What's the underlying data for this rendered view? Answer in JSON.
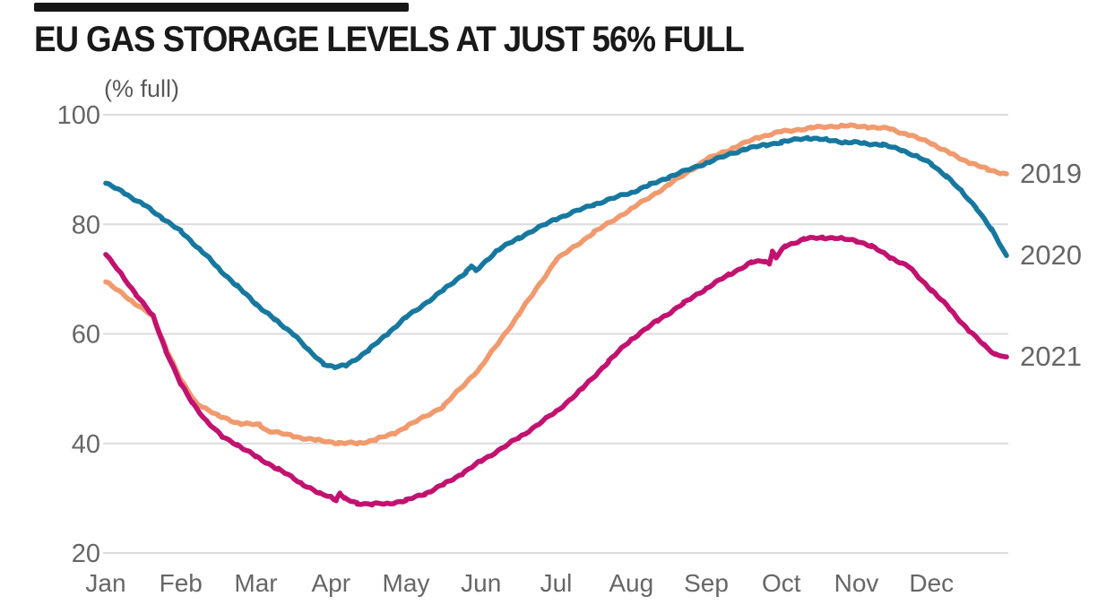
{
  "header": {
    "title": "EU GAS STORAGE LEVELS AT JUST 56% FULL",
    "subtitle": "(% full)"
  },
  "colors": {
    "title_text": "#191919",
    "axis_text": "#666666",
    "gridline": "#dcdcdc",
    "background": "#ffffff",
    "redacted_bar": "#161616",
    "series_2019": "#F09A6E",
    "series_2020": "#17789F",
    "series_2021": "#C21270"
  },
  "chart_data": {
    "type": "line",
    "title": "EU GAS STORAGE LEVELS AT JUST 56% FULL",
    "ylabel": "(% full)",
    "xlabel": "",
    "grid": "horizontal",
    "legend_position": "right-end-labels",
    "x_tick_labels": [
      "Jan",
      "Feb",
      "Mar",
      "Apr",
      "May",
      "Jun",
      "Jul",
      "Aug",
      "Sep",
      "Oct",
      "Nov",
      "Dec"
    ],
    "y_ticks": [
      20,
      40,
      60,
      80,
      100
    ],
    "ylim": [
      20,
      104
    ],
    "xlim_months": [
      0,
      12
    ],
    "series": [
      {
        "name": "2019",
        "color": "#F09A6E",
        "points": [
          [
            0,
            69.5
          ],
          [
            0.35,
            66
          ],
          [
            0.63,
            63.2
          ],
          [
            0.8,
            57.5
          ],
          [
            1.0,
            51.5
          ],
          [
            1.2,
            47.5
          ],
          [
            1.5,
            45
          ],
          [
            1.8,
            43.6
          ],
          [
            2.05,
            43.4
          ],
          [
            2.15,
            42.4
          ],
          [
            2.5,
            41.3
          ],
          [
            2.8,
            40.6
          ],
          [
            3.1,
            40.1
          ],
          [
            3.35,
            40.0
          ],
          [
            3.6,
            40.7
          ],
          [
            3.85,
            41.9
          ],
          [
            4.0,
            43
          ],
          [
            4.5,
            46.8
          ],
          [
            5.0,
            54
          ],
          [
            5.5,
            63.5
          ],
          [
            6.0,
            73.5
          ],
          [
            6.5,
            78.5
          ],
          [
            7.0,
            82.8
          ],
          [
            7.5,
            87.2
          ],
          [
            8.0,
            91.8
          ],
          [
            8.35,
            93.9
          ],
          [
            8.7,
            95.9
          ],
          [
            9.0,
            96.9
          ],
          [
            9.4,
            97.6
          ],
          [
            9.8,
            98.0
          ],
          [
            10.15,
            97.8
          ],
          [
            10.45,
            97.4
          ],
          [
            10.7,
            96.3
          ],
          [
            11.0,
            94.8
          ],
          [
            11.25,
            92.9
          ],
          [
            11.5,
            91.3
          ],
          [
            11.75,
            90.0
          ],
          [
            12,
            89.2
          ]
        ]
      },
      {
        "name": "2020",
        "color": "#17789F",
        "points": [
          [
            0,
            87.5
          ],
          [
            0.25,
            85.7
          ],
          [
            0.5,
            83.6
          ],
          [
            0.75,
            81.2
          ],
          [
            1.0,
            78.7
          ],
          [
            1.25,
            75.5
          ],
          [
            1.5,
            72
          ],
          [
            1.75,
            68.7
          ],
          [
            2.0,
            65.5
          ],
          [
            2.25,
            62.6
          ],
          [
            2.5,
            60
          ],
          [
            2.7,
            57
          ],
          [
            2.9,
            54.6
          ],
          [
            3.05,
            53.9
          ],
          [
            3.2,
            54.2
          ],
          [
            3.5,
            57
          ],
          [
            3.75,
            60
          ],
          [
            4.0,
            63
          ],
          [
            4.5,
            68
          ],
          [
            4.8,
            71.3
          ],
          [
            4.87,
            72.3
          ],
          [
            4.93,
            71.5
          ],
          [
            5.2,
            75.1
          ],
          [
            5.5,
            77.5
          ],
          [
            6.0,
            81
          ],
          [
            6.5,
            83.6
          ],
          [
            7.0,
            85.8
          ],
          [
            7.25,
            87.2
          ],
          [
            7.5,
            88.6
          ],
          [
            8.0,
            91.2
          ],
          [
            8.5,
            93.7
          ],
          [
            8.8,
            94.5
          ],
          [
            9.0,
            95
          ],
          [
            9.35,
            95.8
          ],
          [
            9.6,
            95.4
          ],
          [
            9.85,
            95
          ],
          [
            10.1,
            94.8
          ],
          [
            10.35,
            94.5
          ],
          [
            10.6,
            93.6
          ],
          [
            10.8,
            92.4
          ],
          [
            11.0,
            91
          ],
          [
            11.2,
            88.8
          ],
          [
            11.4,
            86
          ],
          [
            11.6,
            83
          ],
          [
            11.8,
            79
          ],
          [
            12,
            74.3
          ]
        ]
      },
      {
        "name": "2021",
        "color": "#C21270",
        "points": [
          [
            0,
            74.5
          ],
          [
            0.2,
            71
          ],
          [
            0.4,
            67.3
          ],
          [
            0.63,
            63.2
          ],
          [
            0.8,
            57
          ],
          [
            1.0,
            50.8
          ],
          [
            1.15,
            47.5
          ],
          [
            1.35,
            44
          ],
          [
            1.55,
            41.2
          ],
          [
            1.75,
            39.8
          ],
          [
            2.0,
            37.6
          ],
          [
            2.3,
            35.3
          ],
          [
            2.6,
            32.8
          ],
          [
            2.85,
            30.8
          ],
          [
            3.0,
            30.3
          ],
          [
            3.07,
            29.7
          ],
          [
            3.12,
            30.9
          ],
          [
            3.18,
            29.9
          ],
          [
            3.35,
            29.1
          ],
          [
            3.55,
            28.9
          ],
          [
            3.75,
            29.0
          ],
          [
            4.0,
            29.6
          ],
          [
            4.25,
            30.8
          ],
          [
            4.5,
            32.5
          ],
          [
            4.75,
            34.5
          ],
          [
            5.0,
            36.8
          ],
          [
            5.5,
            41
          ],
          [
            6.0,
            45.8
          ],
          [
            6.35,
            50
          ],
          [
            6.7,
            55
          ],
          [
            7.0,
            59
          ],
          [
            7.35,
            62.4
          ],
          [
            7.7,
            65.6
          ],
          [
            8.0,
            68.3
          ],
          [
            8.3,
            70.8
          ],
          [
            8.6,
            73
          ],
          [
            8.78,
            73.3
          ],
          [
            8.84,
            72.9
          ],
          [
            8.88,
            75
          ],
          [
            8.93,
            73.9
          ],
          [
            9.05,
            76
          ],
          [
            9.3,
            77.3
          ],
          [
            9.55,
            77.6
          ],
          [
            9.8,
            77.4
          ],
          [
            10.0,
            77
          ],
          [
            10.2,
            76
          ],
          [
            10.45,
            74
          ],
          [
            10.7,
            72.2
          ],
          [
            11.0,
            68
          ],
          [
            11.25,
            64.5
          ],
          [
            11.5,
            60.5
          ],
          [
            11.7,
            58
          ],
          [
            11.85,
            56.3
          ],
          [
            12,
            55.8
          ]
        ]
      }
    ]
  }
}
